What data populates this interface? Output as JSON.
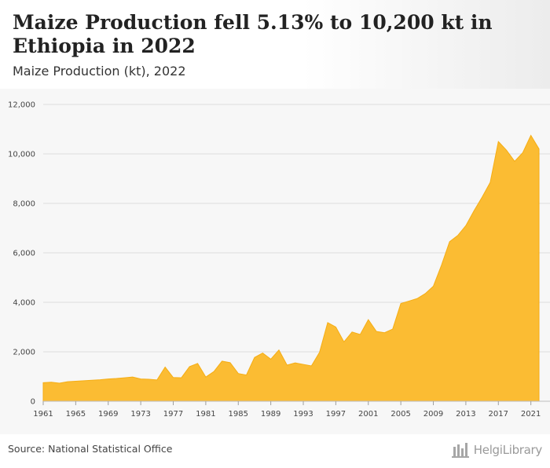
{
  "header": {
    "title": "Maize Production fell 5.13% to 10,200 kt in Ethiopia in 2022",
    "subtitle": "Maize Production (kt), 2022"
  },
  "footer": {
    "source": "Source: National Statistical Office",
    "brand": "HelgiLibrary",
    "brand_icon": "helgi-library-logo-icon"
  },
  "colors": {
    "area_fill": "#fbbc33",
    "area_stroke": "#f5ad14",
    "grid": "#dcdcdc",
    "plot_bg": "#f7f7f7"
  },
  "chart_data": {
    "type": "area",
    "title": "Maize Production fell 5.13% to 10,200 kt in Ethiopia in 2022",
    "subtitle": "Maize Production (kt), 2022",
    "xlabel": "",
    "ylabel": "",
    "ylim": [
      0,
      12000
    ],
    "yticks": [
      0,
      2000,
      4000,
      6000,
      8000,
      10000,
      12000
    ],
    "ytick_labels": [
      "0",
      "2,000",
      "4,000",
      "6,000",
      "8,000",
      "10,000",
      "12,000"
    ],
    "xticks": [
      1961,
      1965,
      1969,
      1973,
      1977,
      1981,
      1985,
      1989,
      1993,
      1997,
      2001,
      2005,
      2009,
      2013,
      2017,
      2021
    ],
    "grid": true,
    "legend": "none",
    "series": [
      {
        "x": [
          1961,
          1962,
          1963,
          1964,
          1965,
          1966,
          1967,
          1968,
          1969,
          1970,
          1971,
          1972,
          1973,
          1974,
          1975,
          1976,
          1977,
          1978,
          1979,
          1980,
          1981,
          1982,
          1983,
          1984,
          1985,
          1986,
          1987,
          1988,
          1989,
          1990,
          1991,
          1992,
          1993,
          1994,
          1995,
          1996,
          1997,
          1998,
          1999,
          2000,
          2001,
          2002,
          2003,
          2004,
          2005,
          2006,
          2007,
          2008,
          2009,
          2010,
          2011,
          2012,
          2013,
          2014,
          2015,
          2016,
          2017,
          2018,
          2019,
          2020,
          2021,
          2022
        ],
        "values": [
          750,
          770,
          730,
          790,
          810,
          830,
          850,
          870,
          900,
          920,
          950,
          980,
          900,
          890,
          860,
          1380,
          960,
          950,
          1400,
          1530,
          980,
          1200,
          1620,
          1560,
          1120,
          1060,
          1770,
          1950,
          1700,
          2070,
          1460,
          1550,
          1490,
          1430,
          1980,
          3180,
          3000,
          2400,
          2800,
          2700,
          3300,
          2820,
          2770,
          2920,
          3950,
          4050,
          4150,
          4350,
          4650,
          5500,
          6450,
          6700,
          7100,
          7700,
          8250,
          8850,
          10500,
          10150,
          9700,
          10050,
          10750,
          10200
        ]
      }
    ]
  }
}
